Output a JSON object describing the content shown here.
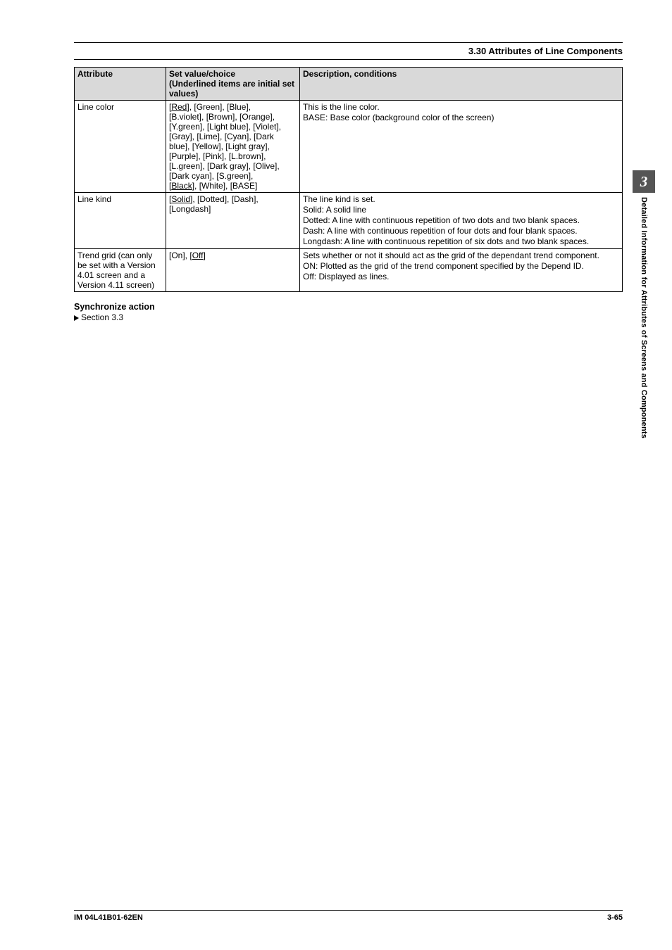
{
  "section_header": "3.30  Attributes of Line Components",
  "table": {
    "headers": {
      "attribute": "Attribute",
      "set_value_l1": "Set value/choice",
      "set_value_l2": "(Underlined items are initial set values)",
      "description": "Description, conditions"
    },
    "rows": {
      "line_color": {
        "attr": "Line color",
        "values": {
          "l1a": "[",
          "l1b": "Red",
          "l1c": "], [Green], [Blue],",
          "l2": "[B.violet], [Brown], [Orange],",
          "l3": "[Y.green], [Light blue], [Violet],",
          "l4": "[Gray], [Lime], [Cyan], [Dark",
          "l5": "blue], [Yellow], [Light gray],",
          "l6": "[Purple], [Pink], [L.brown],",
          "l7": "[L.green], [Dark gray], [Olive],",
          "l8": "[Dark cyan], [S.green],",
          "l9a": "[",
          "l9b": "Black",
          "l9c": "], [White], [BASE]"
        },
        "desc": {
          "l1": "This is the line color.",
          "l2": "BASE: Base color (background color of the screen)"
        }
      },
      "line_kind": {
        "attr": "Line kind",
        "values": {
          "l1a": "[",
          "l1b": "Solid",
          "l1c": "], [Dotted], [Dash],",
          "l2": "[Longdash]"
        },
        "desc": {
          "l1": "The line kind is set.",
          "l2": "Solid:  A solid line",
          "l3": "Dotted: A line with continuous repetition of two dots and two blank spaces.",
          "l4": "Dash: A line with continuous repetition of four dots and four blank spaces.",
          "l5": "Longdash: A line with continuous repetition of six dots and two blank spaces."
        }
      },
      "trend_grid": {
        "attr_l1": "Trend grid (can only",
        "attr_l2": "be set with a Version",
        "attr_l3": "4.01 screen and a",
        "attr_l4": "Version 4.11 screen)",
        "values": {
          "l1a": "[On], [",
          "l1b": "Off",
          "l1c": "]"
        },
        "desc": {
          "l1": "Sets whether or not it should act as the grid of the dependant trend component.",
          "l2": "ON: Plotted as the grid of the trend component specified by the Depend ID.",
          "l3": "Off: Displayed as lines."
        }
      }
    }
  },
  "sync": {
    "heading": "Synchronize action",
    "ref": "Section 3.3"
  },
  "side_tab": {
    "number": "3",
    "text": "Detailed Information for Attributes of Screens and Components"
  },
  "footer": {
    "left": "IM 04L41B01-62EN",
    "right": "3-65"
  }
}
